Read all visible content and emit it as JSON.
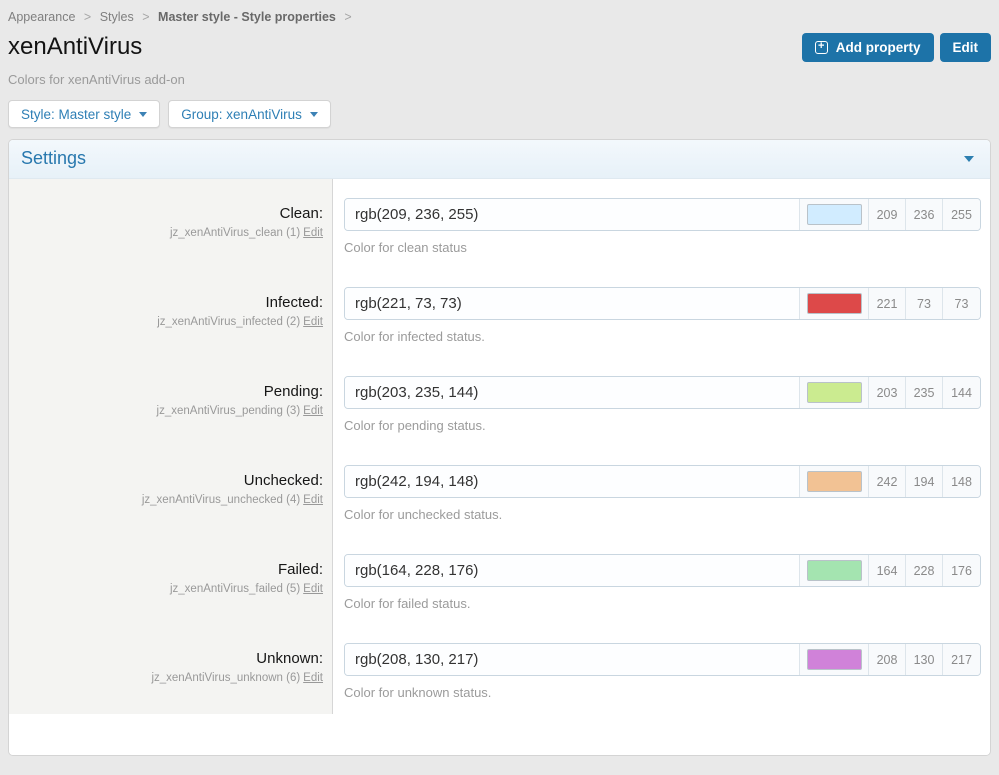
{
  "breadcrumb": {
    "separator": ">",
    "items": [
      {
        "label": "Appearance"
      },
      {
        "label": "Styles"
      },
      {
        "label": "Master style - Style properties"
      }
    ]
  },
  "header": {
    "title": "xenAntiVirus",
    "subtitle": "Colors for xenAntiVirus add-on",
    "buttons": {
      "add_property": "Add property",
      "edit": "Edit"
    }
  },
  "filters": {
    "style_selector": "Style: Master style",
    "group_selector": "Group: xenAntiVirus"
  },
  "settings": {
    "title": "Settings",
    "properties": [
      {
        "label": "Clean:",
        "meta": "jz_xenAntiVirus_clean (1)",
        "edit_label": "Edit",
        "value": "rgb(209, 236, 255)",
        "r": "209",
        "g": "236",
        "b": "255",
        "swatch": "rgb(209, 236, 255)",
        "description": "Color for clean status"
      },
      {
        "label": "Infected:",
        "meta": "jz_xenAntiVirus_infected (2)",
        "edit_label": "Edit",
        "value": "rgb(221, 73, 73)",
        "r": "221",
        "g": "73",
        "b": "73",
        "swatch": "rgb(221, 73, 73)",
        "description": "Color for infected status."
      },
      {
        "label": "Pending:",
        "meta": "jz_xenAntiVirus_pending (3)",
        "edit_label": "Edit",
        "value": "rgb(203, 235, 144)",
        "r": "203",
        "g": "235",
        "b": "144",
        "swatch": "rgb(203, 235, 144)",
        "description": "Color for pending status."
      },
      {
        "label": "Unchecked:",
        "meta": "jz_xenAntiVirus_unchecked (4)",
        "edit_label": "Edit",
        "value": "rgb(242, 194, 148)",
        "r": "242",
        "g": "194",
        "b": "148",
        "swatch": "rgb(242, 194, 148)",
        "description": "Color for unchecked status."
      },
      {
        "label": "Failed:",
        "meta": "jz_xenAntiVirus_failed (5)",
        "edit_label": "Edit",
        "value": "rgb(164, 228, 176)",
        "r": "164",
        "g": "228",
        "b": "176",
        "swatch": "rgb(164, 228, 176)",
        "description": "Color for failed status."
      },
      {
        "label": "Unknown:",
        "meta": "jz_xenAntiVirus_unknown (6)",
        "edit_label": "Edit",
        "value": "rgb(208, 130, 217)",
        "r": "208",
        "g": "130",
        "b": "217",
        "swatch": "rgb(208, 130, 217)",
        "description": "Color for unknown status."
      }
    ]
  },
  "colors": {
    "button_blue": "#1d73a8",
    "link_blue": "#2e7fb5",
    "panel_header_text": "#2878ae",
    "page_background": "#e9e9e9"
  }
}
